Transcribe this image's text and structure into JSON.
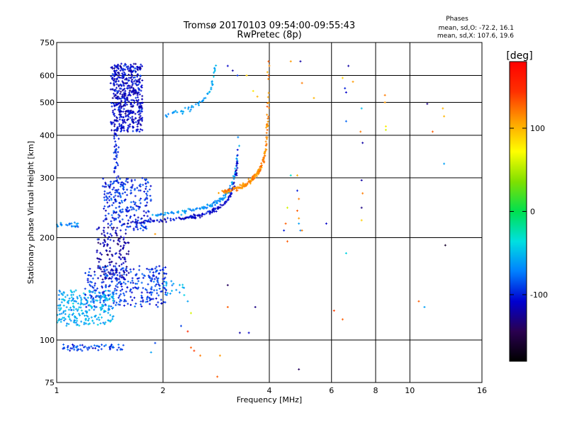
{
  "chart_data": {
    "type": "scatter",
    "title": "Tromsø 20170103 09:54:00-09:55:43",
    "subtitle": "RwPretec (8p)",
    "xlabel": "Frequency [MHz]",
    "ylabel": "Stationary phase Virtual Height [km]",
    "x_scale": "log",
    "y_scale": "log",
    "xlim": [
      1,
      16
    ],
    "ylim": [
      75,
      750
    ],
    "x_ticks": [
      1,
      2,
      4,
      6,
      8,
      10,
      16
    ],
    "y_ticks": [
      75,
      100,
      200,
      300,
      400,
      500,
      600,
      750
    ],
    "grid": true,
    "legend": {
      "title": "Phases",
      "line1": "mean, sd,O: -72.2, 16.1",
      "line2": "mean, sd,X: 107.6, 19.6"
    },
    "colorbar": {
      "label": "[deg]",
      "range": [
        -180,
        180
      ],
      "ticks": [
        "100",
        "0",
        "-100"
      ],
      "tick_values": [
        100,
        0,
        -100
      ],
      "colors": [
        "#000000",
        "#2a0050",
        "#0000d0",
        "#0080ff",
        "#00e0e0",
        "#00e050",
        "#80e000",
        "#ffff00",
        "#ffa000",
        "#ff3000",
        "#ff0000"
      ]
    },
    "traces": [
      {
        "shape": "cloud",
        "phase": -110,
        "f_range": [
          1.42,
          1.75
        ],
        "h_range": [
          410,
          650
        ],
        "n": 520
      },
      {
        "shape": "cloud",
        "phase": -95,
        "f_range": [
          1.35,
          1.85
        ],
        "h_range": [
          210,
          300
        ],
        "n": 260
      },
      {
        "shape": "cloud",
        "phase": -120,
        "f_range": [
          1.3,
          1.6
        ],
        "h_range": [
          150,
          215
        ],
        "n": 160
      },
      {
        "shape": "cloud",
        "phase": -95,
        "f_range": [
          1.2,
          2.05
        ],
        "h_range": [
          125,
          165
        ],
        "n": 300
      },
      {
        "shape": "cloud",
        "phase": -55,
        "f_range": [
          1.0,
          1.45
        ],
        "h_range": [
          110,
          140
        ],
        "n": 240
      },
      {
        "shape": "cloud",
        "phase": -90,
        "f_range": [
          1.03,
          1.55
        ],
        "h_range": [
          93,
          97
        ],
        "n": 60
      },
      {
        "shape": "cloud",
        "phase": -70,
        "f_range": [
          1.0,
          1.15
        ],
        "h_range": [
          215,
          222
        ],
        "n": 25
      },
      {
        "shape": "cloud",
        "phase": -100,
        "f_range": [
          1.45,
          1.5
        ],
        "h_range": [
          300,
          420
        ],
        "n": 40
      },
      {
        "shape": "cloud",
        "phase": -60,
        "f_range": [
          2.0,
          2.3
        ],
        "h_range": [
          135,
          150
        ],
        "n": 20
      },
      {
        "shape": "cutoff",
        "phase": -65,
        "fmin": 1.82,
        "fc": 3.3,
        "hmin": 228,
        "n": 120
      },
      {
        "shape": "cutoff",
        "phase": -110,
        "fmin": 1.42,
        "fc": 3.3,
        "hmin": 218,
        "n": 150
      },
      {
        "shape": "cutoff",
        "phase": 115,
        "fmin": 2.85,
        "fc": 4.0,
        "hmin": 258,
        "n": 180
      },
      {
        "shape": "cutoff",
        "phase": -60,
        "fmin": 1.92,
        "fc": 2.88,
        "hmin": 438,
        "n": 55
      }
    ],
    "points": [
      {
        "f": 3.05,
        "h": 640,
        "phase": -110
      },
      {
        "f": 3.15,
        "h": 620,
        "phase": -120
      },
      {
        "f": 3.25,
        "h": 600,
        "phase": -95
      },
      {
        "f": 3.45,
        "h": 600,
        "phase": 90
      },
      {
        "f": 3.6,
        "h": 540,
        "phase": 80
      },
      {
        "f": 3.7,
        "h": 520,
        "phase": 100
      },
      {
        "f": 4.6,
        "h": 660,
        "phase": 110
      },
      {
        "f": 4.9,
        "h": 660,
        "phase": -120
      },
      {
        "f": 4.95,
        "h": 570,
        "phase": 120
      },
      {
        "f": 5.35,
        "h": 515,
        "phase": 100
      },
      {
        "f": 6.45,
        "h": 590,
        "phase": 90
      },
      {
        "f": 6.55,
        "h": 550,
        "phase": -100
      },
      {
        "f": 6.6,
        "h": 535,
        "phase": -110
      },
      {
        "f": 6.7,
        "h": 640,
        "phase": -120
      },
      {
        "f": 6.9,
        "h": 575,
        "phase": 110
      },
      {
        "f": 7.3,
        "h": 480,
        "phase": -50
      },
      {
        "f": 7.25,
        "h": 410,
        "phase": 120
      },
      {
        "f": 7.35,
        "h": 380,
        "phase": -120
      },
      {
        "f": 6.6,
        "h": 440,
        "phase": -80
      },
      {
        "f": 8.5,
        "h": 525,
        "phase": 120
      },
      {
        "f": 8.5,
        "h": 500,
        "phase": 110
      },
      {
        "f": 8.55,
        "h": 425,
        "phase": 80
      },
      {
        "f": 8.55,
        "h": 415,
        "phase": 60
      },
      {
        "f": 11.2,
        "h": 495,
        "phase": -130
      },
      {
        "f": 12.4,
        "h": 480,
        "phase": 100
      },
      {
        "f": 12.5,
        "h": 455,
        "phase": 100
      },
      {
        "f": 11.6,
        "h": 410,
        "phase": 130
      },
      {
        "f": 12.5,
        "h": 330,
        "phase": -60
      },
      {
        "f": 12.6,
        "h": 190,
        "phase": -160
      },
      {
        "f": 4.6,
        "h": 305,
        "phase": -30
      },
      {
        "f": 4.8,
        "h": 305,
        "phase": 100
      },
      {
        "f": 4.8,
        "h": 275,
        "phase": -100
      },
      {
        "f": 4.85,
        "h": 260,
        "phase": 120
      },
      {
        "f": 4.8,
        "h": 240,
        "phase": 130
      },
      {
        "f": 4.85,
        "h": 228,
        "phase": 110
      },
      {
        "f": 4.85,
        "h": 220,
        "phase": -60
      },
      {
        "f": 4.9,
        "h": 210,
        "phase": -70
      },
      {
        "f": 4.95,
        "h": 210,
        "phase": 120
      },
      {
        "f": 4.5,
        "h": 245,
        "phase": 60
      },
      {
        "f": 4.45,
        "h": 220,
        "phase": 130
      },
      {
        "f": 4.4,
        "h": 210,
        "phase": -100
      },
      {
        "f": 4.5,
        "h": 195,
        "phase": 130
      },
      {
        "f": 5.8,
        "h": 220,
        "phase": -110
      },
      {
        "f": 6.6,
        "h": 180,
        "phase": -40
      },
      {
        "f": 7.3,
        "h": 295,
        "phase": -120
      },
      {
        "f": 7.35,
        "h": 270,
        "phase": 120
      },
      {
        "f": 7.3,
        "h": 245,
        "phase": -130
      },
      {
        "f": 7.3,
        "h": 225,
        "phase": 90
      },
      {
        "f": 3.05,
        "h": 145,
        "phase": -140
      },
      {
        "f": 3.05,
        "h": 125,
        "phase": 130
      },
      {
        "f": 3.3,
        "h": 105,
        "phase": -120
      },
      {
        "f": 3.5,
        "h": 105,
        "phase": -110
      },
      {
        "f": 3.65,
        "h": 125,
        "phase": -130
      },
      {
        "f": 2.4,
        "h": 95,
        "phase": 130
      },
      {
        "f": 2.45,
        "h": 93,
        "phase": 140
      },
      {
        "f": 2.55,
        "h": 90,
        "phase": 120
      },
      {
        "f": 2.85,
        "h": 78,
        "phase": 130
      },
      {
        "f": 2.9,
        "h": 90,
        "phase": 110
      },
      {
        "f": 4.85,
        "h": 82,
        "phase": -140
      },
      {
        "f": 6.1,
        "h": 122,
        "phase": 140
      },
      {
        "f": 6.45,
        "h": 115,
        "phase": 130
      },
      {
        "f": 10.6,
        "h": 130,
        "phase": 130
      },
      {
        "f": 11.0,
        "h": 125,
        "phase": -60
      },
      {
        "f": 2.35,
        "h": 130,
        "phase": -60
      },
      {
        "f": 2.4,
        "h": 120,
        "phase": 60
      },
      {
        "f": 2.35,
        "h": 106,
        "phase": 150
      },
      {
        "f": 2.25,
        "h": 110,
        "phase": -90
      },
      {
        "f": 1.9,
        "h": 98,
        "phase": -90
      },
      {
        "f": 1.85,
        "h": 92,
        "phase": -60
      },
      {
        "f": 1.5,
        "h": 95,
        "phase": -100
      },
      {
        "f": 1.9,
        "h": 205,
        "phase": 110
      }
    ]
  }
}
